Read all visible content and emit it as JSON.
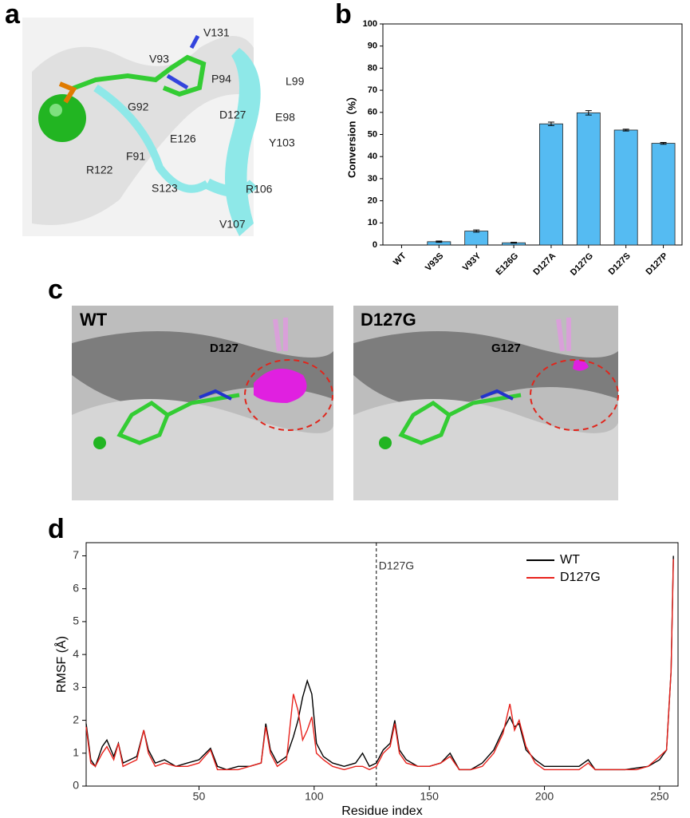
{
  "panel_labels": [
    "a",
    "b",
    "c",
    "d"
  ],
  "panel_a": {
    "residues": [
      "V93",
      "V131",
      "P94",
      "L99",
      "G92",
      "D127",
      "E98",
      "E126",
      "Y103",
      "F91",
      "R122",
      "S123",
      "R106",
      "V107"
    ]
  },
  "panel_c": {
    "left_title": "WT",
    "left_residue": "D127",
    "right_title": "D127G",
    "right_residue": "G127"
  },
  "chart_data": [
    {
      "type": "bar",
      "ylabel": "Conversion（%）",
      "categories": [
        "WT",
        "V93S",
        "V93Y",
        "E126G",
        "D127A",
        "D127G",
        "D127S",
        "D127P"
      ],
      "values": [
        0,
        1.5,
        6.3,
        1.0,
        54.8,
        59.8,
        52,
        46
      ],
      "errors": [
        0,
        0.3,
        0.5,
        0.2,
        0.8,
        1.0,
        0.4,
        0.4
      ],
      "color": "#55bbf2",
      "ylim": [
        0,
        100
      ],
      "yticks": [
        0,
        10,
        20,
        30,
        40,
        50,
        60,
        70,
        80,
        90,
        100
      ]
    },
    {
      "type": "line",
      "xlabel": "Residue index",
      "ylabel": "RMSF (Å)",
      "x": [
        1,
        3,
        5,
        8,
        10,
        13,
        15,
        17,
        20,
        23,
        26,
        28,
        31,
        35,
        40,
        45,
        50,
        55,
        58,
        62,
        67,
        72,
        77,
        79,
        81,
        84,
        88,
        91,
        93,
        95,
        97,
        99,
        101,
        104,
        108,
        113,
        118,
        121,
        124,
        127,
        130,
        133,
        135,
        137,
        140,
        145,
        150,
        155,
        159,
        163,
        168,
        173,
        178,
        182,
        185,
        187,
        189,
        192,
        196,
        200,
        205,
        210,
        215,
        219,
        222,
        226,
        230,
        235,
        240,
        245,
        250,
        253,
        255,
        256
      ],
      "series": [
        {
          "name": "WT",
          "color": "#000000",
          "values": [
            1.9,
            0.8,
            0.6,
            1.2,
            1.4,
            0.9,
            1.3,
            0.7,
            0.8,
            0.9,
            1.7,
            1.1,
            0.7,
            0.8,
            0.6,
            0.7,
            0.8,
            1.15,
            0.6,
            0.5,
            0.6,
            0.6,
            0.7,
            1.9,
            1.1,
            0.7,
            0.9,
            1.5,
            2.0,
            2.7,
            3.2,
            2.8,
            1.3,
            0.9,
            0.7,
            0.6,
            0.7,
            1.0,
            0.6,
            0.7,
            1.1,
            1.3,
            2.0,
            1.1,
            0.8,
            0.6,
            0.6,
            0.7,
            1.0,
            0.5,
            0.5,
            0.7,
            1.1,
            1.7,
            2.1,
            1.8,
            1.9,
            1.1,
            0.8,
            0.6,
            0.6,
            0.6,
            0.6,
            0.8,
            0.5,
            0.5,
            0.5,
            0.5,
            0.55,
            0.6,
            0.8,
            1.1,
            3.5,
            7.0
          ]
        },
        {
          "name": "D127G",
          "color": "#e8221c",
          "values": [
            1.8,
            0.7,
            0.6,
            1.0,
            1.2,
            0.8,
            1.3,
            0.6,
            0.7,
            0.8,
            1.7,
            1.0,
            0.6,
            0.7,
            0.6,
            0.6,
            0.7,
            1.1,
            0.5,
            0.5,
            0.5,
            0.6,
            0.7,
            1.8,
            1.0,
            0.6,
            0.8,
            2.8,
            2.3,
            1.4,
            1.7,
            2.1,
            1.0,
            0.8,
            0.6,
            0.5,
            0.6,
            0.6,
            0.5,
            0.6,
            1.0,
            1.2,
            1.9,
            1.0,
            0.7,
            0.6,
            0.6,
            0.7,
            0.9,
            0.5,
            0.5,
            0.6,
            1.0,
            1.6,
            2.5,
            1.7,
            2.0,
            1.2,
            0.7,
            0.5,
            0.5,
            0.5,
            0.5,
            0.7,
            0.5,
            0.5,
            0.5,
            0.5,
            0.5,
            0.6,
            0.9,
            1.1,
            3.5,
            6.9
          ]
        }
      ],
      "vline": 127,
      "vline_label": "D127G",
      "xlim": [
        1,
        258
      ],
      "xticks": [
        50,
        100,
        150,
        200,
        250
      ],
      "ylim": [
        0,
        7.4
      ],
      "yticks": [
        0,
        1,
        2,
        3,
        4,
        5,
        6,
        7
      ],
      "legend": "upper right"
    }
  ]
}
